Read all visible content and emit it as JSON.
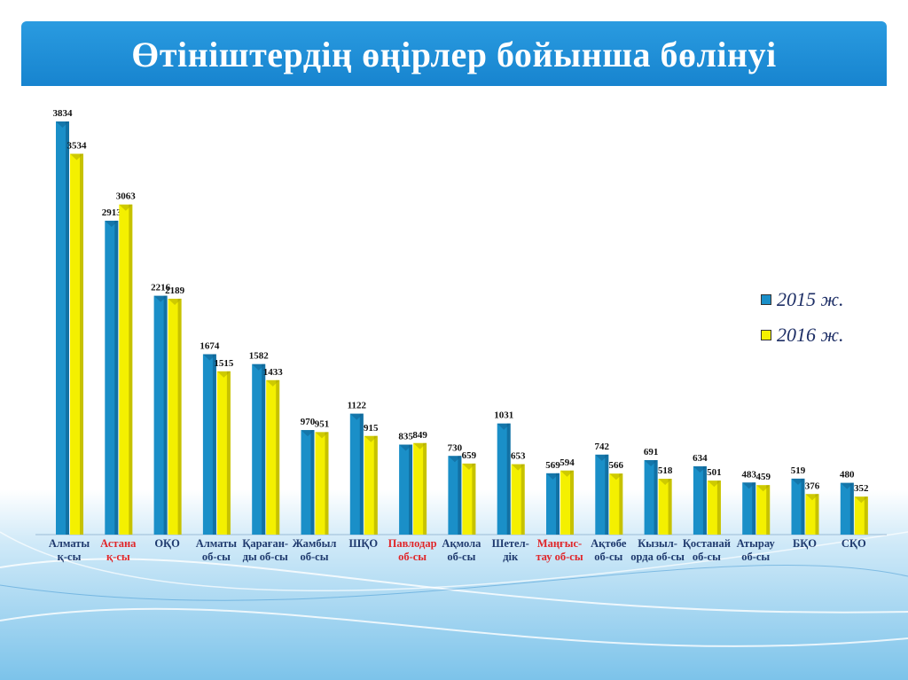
{
  "title": "Өтініштердің өңірлер бойынша бөлінуі",
  "colors": {
    "banner": "#1f8fd6",
    "series_2015": "#1a8fc8",
    "series_2016": "#f4f000",
    "highlight_label": "#e0262a",
    "label": "#1f3a6e"
  },
  "chart_data": {
    "type": "bar",
    "title": "",
    "xlabel": "",
    "ylabel": "",
    "ylim": [
      0,
      4000
    ],
    "grid": false,
    "legend_position": "right",
    "categories": [
      "Алматы\nқ-сы",
      "Астана\nқ-сы",
      "ОҚО",
      "Алматы\nоб-сы",
      "Қараған-\nды об-сы",
      "Жамбыл\nоб-сы",
      "ШҚО",
      "Павлодар\nоб-сы",
      "Ақмола\nоб-сы",
      "Шетел-\nдік",
      "Маңғыс-\nтау об-сы",
      "Ақтөбе\nоб-сы",
      "Кызыл-\nорда об-сы",
      "Қостанай\nоб-сы",
      "Атырау\nоб-сы",
      "БҚО",
      "СҚО"
    ],
    "highlighted_categories": [
      1,
      7,
      10
    ],
    "series": [
      {
        "name": "2015 ж.",
        "color": "#1a8fc8",
        "values": [
          3834,
          2913,
          2216,
          1674,
          1582,
          970,
          1122,
          835,
          730,
          1031,
          569,
          742,
          691,
          634,
          483,
          519,
          480
        ]
      },
      {
        "name": "2016 ж.",
        "color": "#f4f000",
        "values": [
          3534,
          3063,
          2189,
          1515,
          1433,
          951,
          915,
          849,
          659,
          653,
          594,
          566,
          518,
          501,
          459,
          376,
          352
        ]
      }
    ]
  }
}
